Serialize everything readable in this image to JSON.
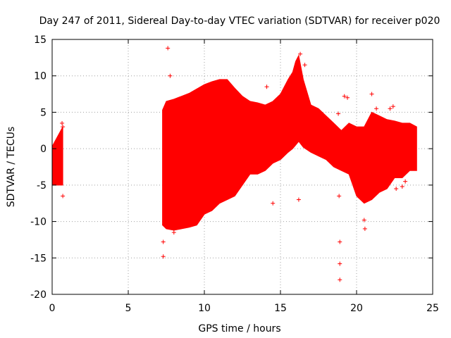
{
  "chart_data": {
    "type": "scatter",
    "title": "Day 247 of 2011, Sidereal Day-to-day VTEC variation (SDTVAR) for receiver p020",
    "xlabel": "GPS time / hours",
    "ylabel": "SDTVAR / TECUs",
    "xlim": [
      0,
      25
    ],
    "ylim": [
      -20,
      15
    ],
    "xticks": [
      0,
      5,
      10,
      15,
      20,
      25
    ],
    "yticks": [
      -20,
      -15,
      -10,
      -5,
      0,
      5,
      10,
      15
    ],
    "grid": true,
    "legend": "none",
    "series": [
      {
        "name": "SDTVAR",
        "color": "#ff0000",
        "marker": "+",
        "envelope_hours": [
          0.0,
          0.7,
          7.25,
          7.5,
          8.0,
          8.5,
          9.0,
          9.5,
          10.0,
          10.5,
          11.0,
          11.5,
          12.0,
          12.5,
          13.0,
          13.5,
          14.0,
          14.5,
          15.0,
          15.5,
          15.8,
          16.0,
          16.2,
          16.5,
          17.0,
          17.5,
          18.0,
          18.5,
          19.0,
          19.5,
          20.0,
          20.5,
          21.0,
          21.5,
          22.0,
          22.5,
          23.0,
          23.5,
          23.95
        ],
        "envelope_upper": [
          0.3,
          3.0,
          5.3,
          6.5,
          6.8,
          7.2,
          7.6,
          8.2,
          8.8,
          9.2,
          9.5,
          9.5,
          8.3,
          7.2,
          6.5,
          6.3,
          6.0,
          6.5,
          7.5,
          9.5,
          10.5,
          12.0,
          12.8,
          9.5,
          6.0,
          5.5,
          4.5,
          3.5,
          2.5,
          3.5,
          3.0,
          3.0,
          5.0,
          4.5,
          4.0,
          3.8,
          3.5,
          3.5,
          3.0
        ],
        "envelope_lower": [
          -5.0,
          -5.0,
          -10.5,
          -11.0,
          -11.2,
          -11.0,
          -10.8,
          -10.5,
          -9.0,
          -8.5,
          -7.5,
          -7.0,
          -6.5,
          -5.0,
          -3.5,
          -3.5,
          -3.0,
          -2.0,
          -1.5,
          -0.5,
          0.0,
          0.5,
          1.0,
          0.2,
          -0.5,
          -1.0,
          -1.5,
          -2.5,
          -3.0,
          -3.5,
          -6.5,
          -7.5,
          -7.0,
          -6.0,
          -5.5,
          -4.0,
          -4.0,
          -3.0,
          -3.0
        ],
        "scattered_points": [
          [
            0.65,
            3.5
          ],
          [
            0.7,
            3.0
          ],
          [
            0.7,
            -6.5
          ],
          [
            7.3,
            -12.8
          ],
          [
            7.3,
            -14.8
          ],
          [
            7.6,
            13.8
          ],
          [
            7.75,
            10.0
          ],
          [
            8.0,
            -11.5
          ],
          [
            14.1,
            8.5
          ],
          [
            14.5,
            -7.5
          ],
          [
            16.2,
            -7.0
          ],
          [
            16.3,
            13.0
          ],
          [
            16.6,
            11.5
          ],
          [
            18.8,
            4.8
          ],
          [
            18.85,
            -6.5
          ],
          [
            18.9,
            -12.8
          ],
          [
            18.9,
            -15.8
          ],
          [
            18.9,
            -18.0
          ],
          [
            19.2,
            7.2
          ],
          [
            19.4,
            7.0
          ],
          [
            20.5,
            -9.8
          ],
          [
            20.55,
            -11.0
          ],
          [
            21.0,
            7.5
          ],
          [
            21.3,
            5.5
          ],
          [
            22.2,
            5.5
          ],
          [
            22.4,
            5.8
          ],
          [
            22.6,
            -5.5
          ],
          [
            23.2,
            -4.5
          ],
          [
            23.0,
            -5.2
          ],
          [
            23.5,
            2.5
          ]
        ]
      }
    ]
  }
}
